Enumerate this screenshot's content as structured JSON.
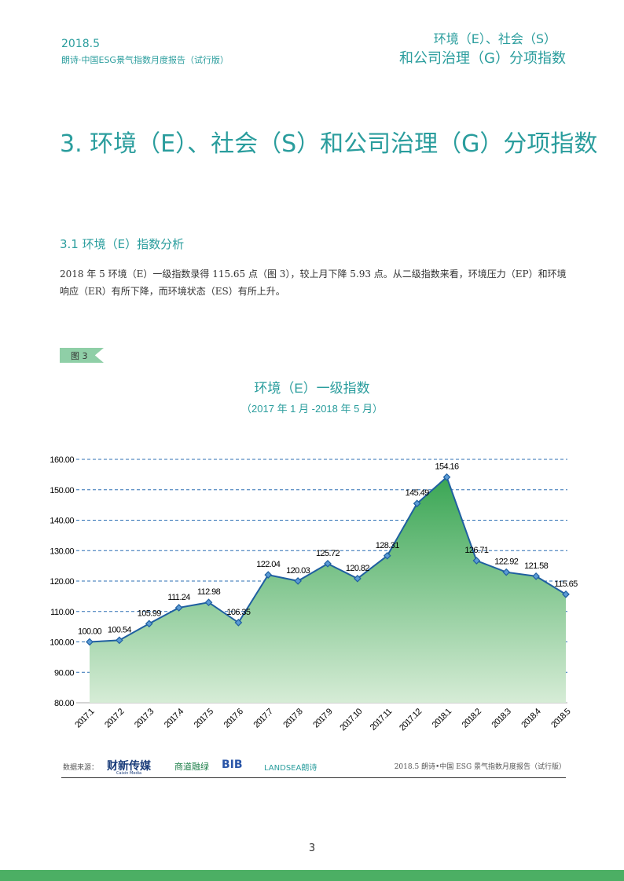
{
  "header": {
    "date": "2018.5",
    "report": "朗诗·中国ESG景气指数月度报告（试行版）",
    "right_line1": "环境（E）、社会（S）",
    "right_line2": "和公司治理（G）分项指数"
  },
  "title": "3. 环境（E）、社会（S）和公司治理（G）分项指数",
  "section": "3.1 环境（E）指数分析",
  "paragraph": "2018 年 5 环境（E）一级指数录得 115.65 点（图 3），较上月下降 5.93 点。从二级指数来看，环境压力（EP）和环境响应（ER）有所下降，而环境状态（ES）有所上升。",
  "figure_label": "图 3",
  "chart_data": {
    "type": "area",
    "title": "环境（E）一级指数",
    "subtitle": "（2017 年 1 月 -2018 年 5 月）",
    "categories": [
      "2017.1",
      "2017.2",
      "2017.3",
      "2017.4",
      "2017.5",
      "2017.6",
      "2017.7",
      "2017.8",
      "2017.9",
      "2017.10",
      "2017.11",
      "2017.12",
      "2018.1",
      "2018.2",
      "2018.3",
      "2018.4",
      "2018.5"
    ],
    "values": [
      100.0,
      100.54,
      105.99,
      111.24,
      112.98,
      106.35,
      122.04,
      120.03,
      125.72,
      120.82,
      128.31,
      145.49,
      154.16,
      126.71,
      122.92,
      121.58,
      115.65
    ],
    "value_labels": [
      "100.00",
      "100.54",
      "105.99",
      "111.24",
      "112.98",
      "106.35",
      "122.04",
      "120.03",
      "125.72",
      "120.82",
      "128.31",
      "145.49",
      "154.16",
      "126.71",
      "122.92",
      "121.58",
      "115.65"
    ],
    "color": "#1f5fa0",
    "ylim": [
      80,
      160
    ],
    "yticks": [
      {
        "value": 80,
        "label": "80.00"
      },
      {
        "value": 90,
        "label": "90.00"
      },
      {
        "value": 100,
        "label": "100.00"
      },
      {
        "value": 110,
        "label": "110.00"
      },
      {
        "value": 120,
        "label": "120.00"
      },
      {
        "value": 130,
        "label": "130.00"
      },
      {
        "value": 140,
        "label": "140.00"
      },
      {
        "value": 150,
        "label": "150.00"
      },
      {
        "value": 160,
        "label": "160.00"
      }
    ],
    "grid": true
  },
  "footer": {
    "source_label": "数据来源：",
    "logo1": "财新传媒",
    "logo1_sub": "Caixin Media",
    "logo2": "商道融绿",
    "logo3": "BIB",
    "logo4": "LANDSEA朗诗",
    "report": "2018.5 朗诗•中国 ESG 景气指数月度报告（试行版）"
  },
  "page_number": "3"
}
